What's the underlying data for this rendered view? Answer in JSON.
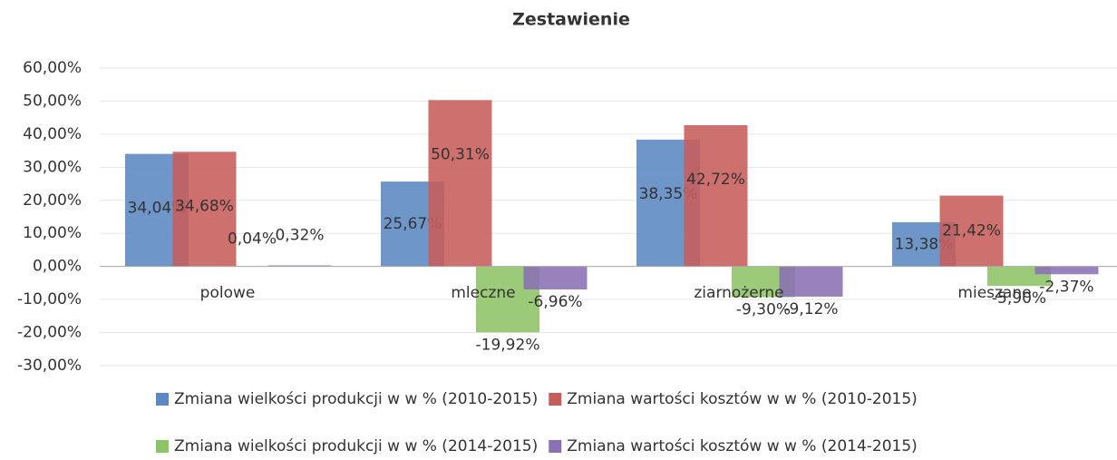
{
  "chart_data": {
    "type": "bar",
    "title": "Zestawienie",
    "categories": [
      "polowe",
      "mleczne",
      "ziarnożerne",
      "mieszane"
    ],
    "series": [
      {
        "name": "Zmiana wielkości produkcji w  w % (2010-2015)",
        "color": "#5a88c2",
        "values": [
          34.04,
          25.67,
          38.35,
          13.38
        ],
        "value_labels": [
          "34,04%",
          "25,67%",
          "38,35%",
          "13,38%"
        ]
      },
      {
        "name": "Zmiana wartości kosztów w  w % (2010-2015)",
        "color": "#c75d5a",
        "values": [
          34.68,
          50.31,
          42.72,
          21.42
        ],
        "value_labels": [
          "34,68%",
          "50,31%",
          "42,72%",
          "21,42%"
        ]
      },
      {
        "name": "Zmiana wielkości produkcji w  w % (2014-2015)",
        "color": "#8dc465",
        "values": [
          0.04,
          -19.92,
          -9.3,
          -5.9
        ],
        "value_labels": [
          "0,04%",
          "-19,92%",
          "-9,30%",
          "-5,90%"
        ]
      },
      {
        "name": "Zmiana wartości kosztów w  w % (2014-2015)",
        "color": "#8a70b4",
        "values": [
          0.32,
          -6.96,
          -9.12,
          -2.37
        ],
        "value_labels": [
          "0,32%",
          "-6,96%",
          "-9,12%",
          "-2,37%"
        ]
      }
    ],
    "ylim": [
      -30,
      60
    ],
    "yticks": [
      {
        "value": -30,
        "label": "-30,00%"
      },
      {
        "value": -20,
        "label": "-20,00%"
      },
      {
        "value": -10,
        "label": "-10,00%"
      },
      {
        "value": 0,
        "label": "0,00%"
      },
      {
        "value": 10,
        "label": "10,00%"
      },
      {
        "value": 20,
        "label": "20,00%"
      },
      {
        "value": 30,
        "label": "30,00%"
      },
      {
        "value": 40,
        "label": "40,00%"
      },
      {
        "value": 50,
        "label": "50,00%"
      },
      {
        "value": 60,
        "label": "60,00%"
      }
    ],
    "grid": true
  }
}
